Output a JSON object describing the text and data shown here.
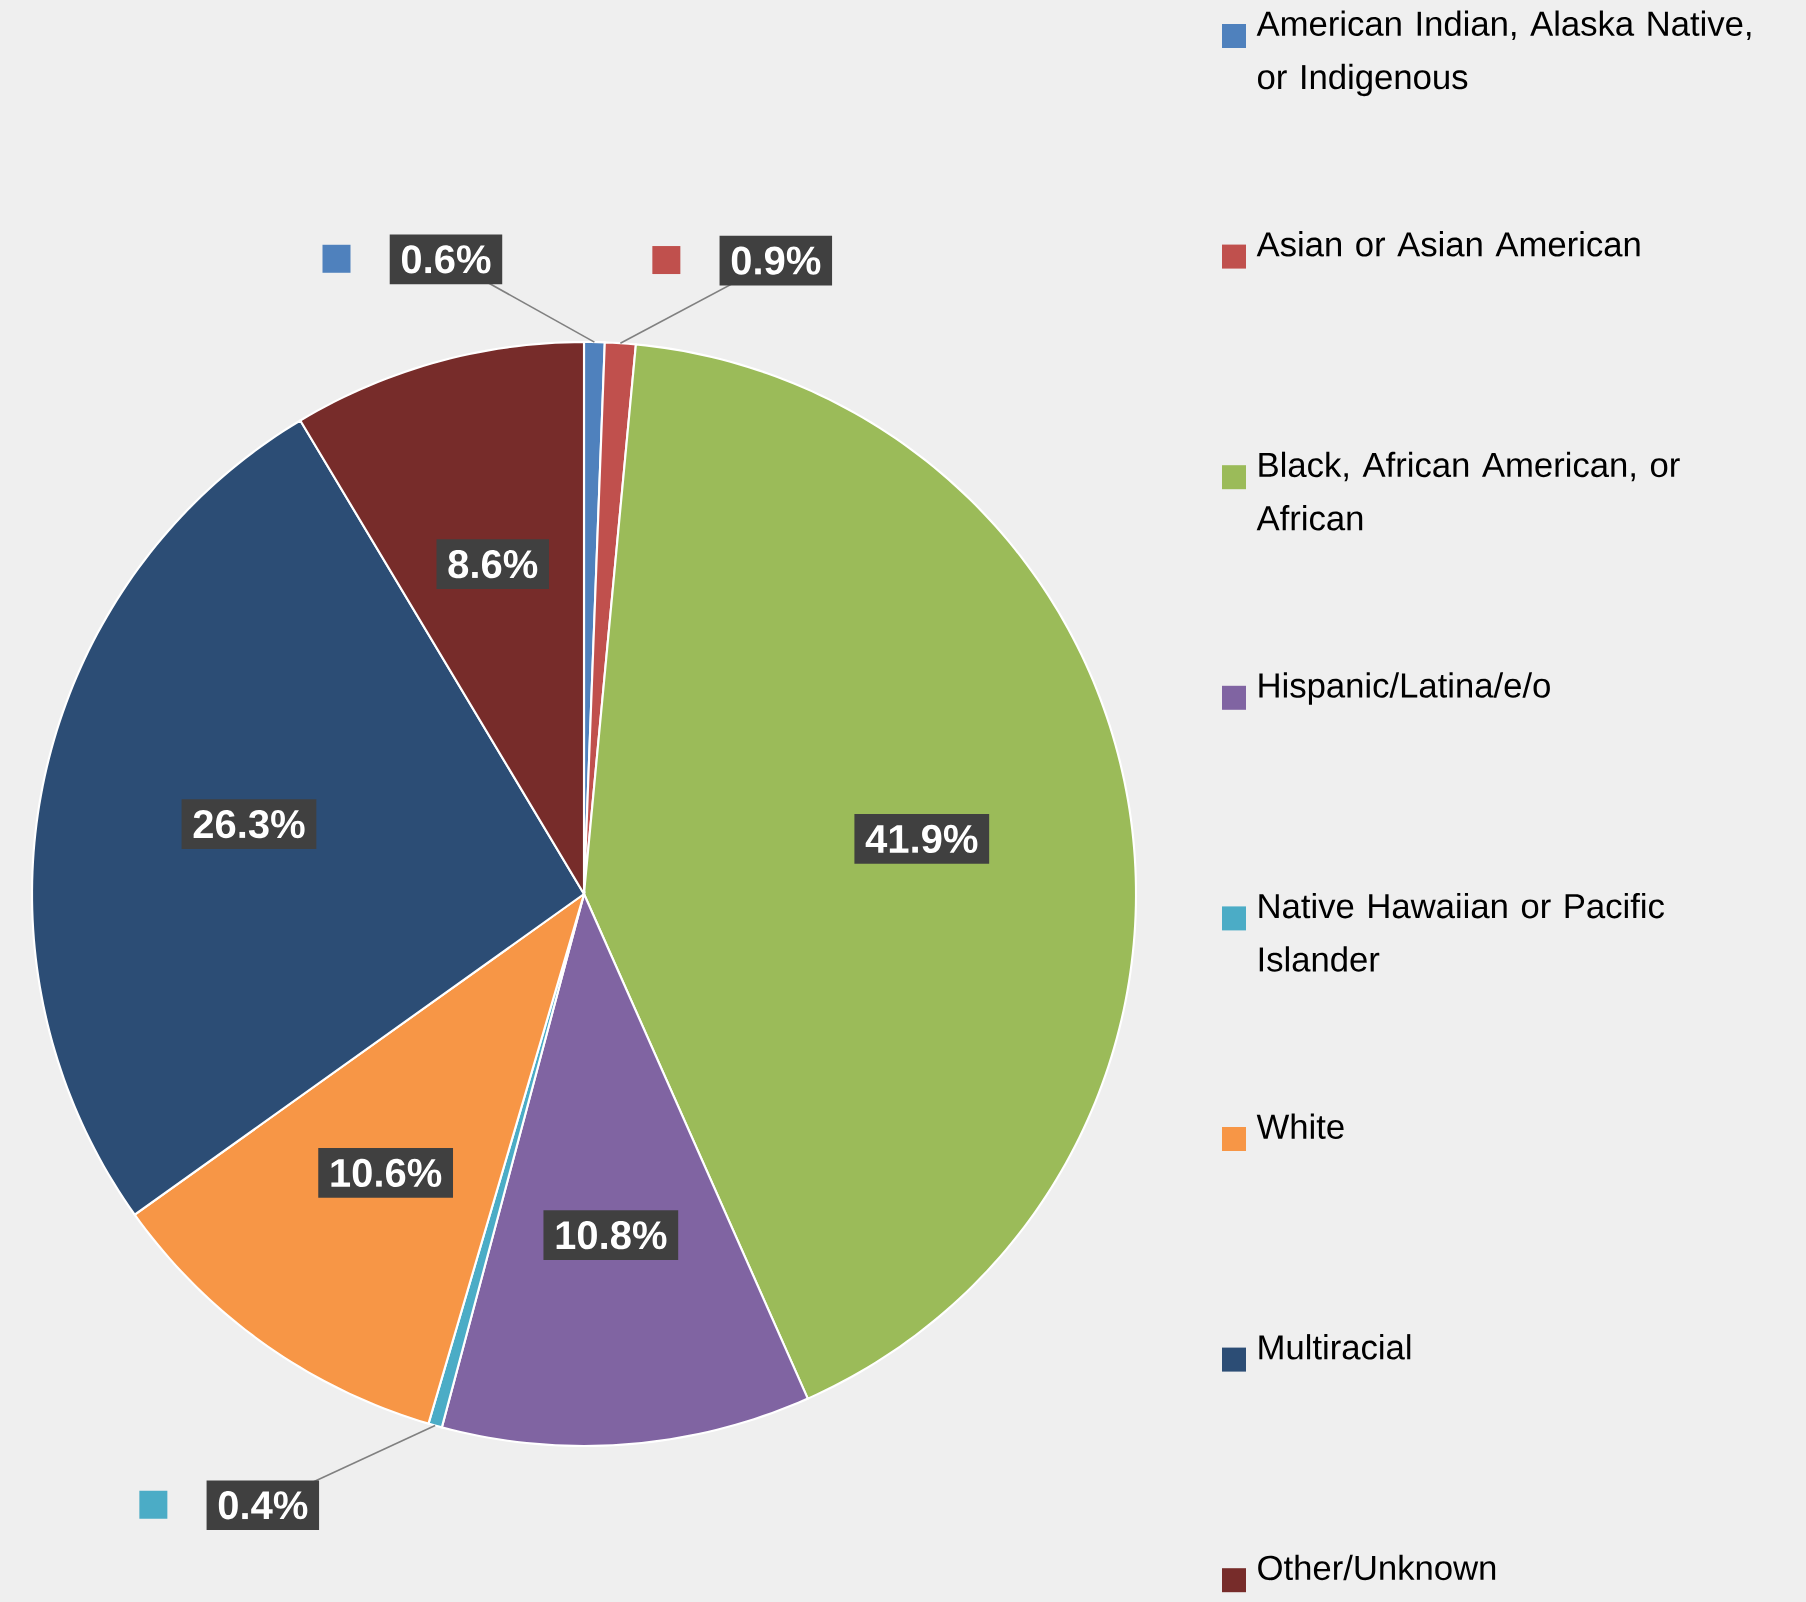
{
  "chart_data": {
    "type": "pie",
    "categories": [
      "American Indian, Alaska Native, or Indigenous",
      "Asian or Asian American",
      "Black, African American, or African",
      "Hispanic/Latina/e/o",
      "Native Hawaiian or Pacific Islander",
      "White",
      "Multiracial",
      "Other/Unknown"
    ],
    "values": [
      0.6,
      0.9,
      41.9,
      10.8,
      0.4,
      10.6,
      26.3,
      8.6
    ],
    "value_labels": [
      "0.6%",
      "0.9%",
      "41.9%",
      "10.8%",
      "0.4%",
      "10.6%",
      "26.3%",
      "8.6%"
    ],
    "colors": [
      "#4f81bd",
      "#c0504d",
      "#9bbb59",
      "#8064a2",
      "#4bacc6",
      "#f79646",
      "#2c4d75",
      "#772c2a"
    ],
    "legend": "right"
  }
}
